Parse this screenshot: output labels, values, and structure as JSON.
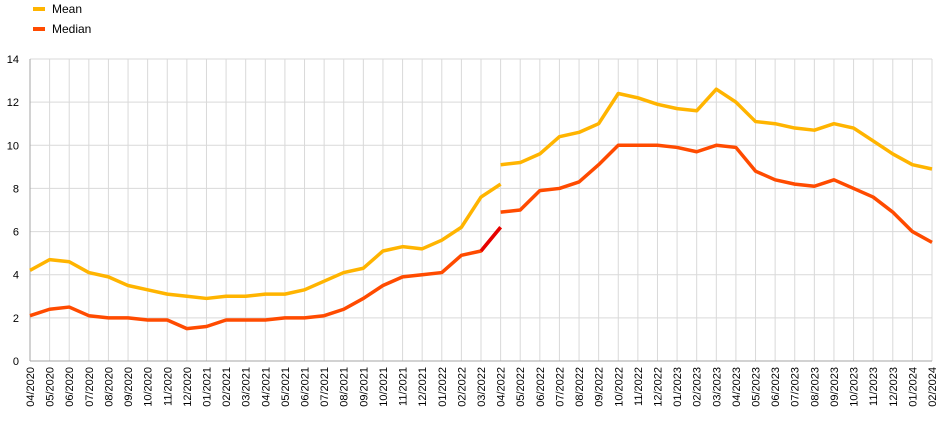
{
  "chart_data": {
    "type": "line",
    "title": "",
    "xlabel": "",
    "ylabel": "",
    "ylim": [
      0,
      14
    ],
    "yticks": [
      0,
      2,
      4,
      6,
      8,
      10,
      12,
      14
    ],
    "grid": true,
    "legend_position": "top-left",
    "categories": [
      "04/2020",
      "05/2020",
      "06/2020",
      "07/2020",
      "08/2020",
      "09/2020",
      "10/2020",
      "11/2020",
      "12/2020",
      "01/2021",
      "02/2021",
      "03/2021",
      "04/2021",
      "05/2021",
      "06/2021",
      "07/2021",
      "08/2021",
      "09/2021",
      "10/2021",
      "11/2021",
      "12/2021",
      "01/2022",
      "02/2022",
      "03/2022",
      "04/2022",
      "05/2022",
      "06/2022",
      "07/2022",
      "08/2022",
      "09/2022",
      "10/2022",
      "11/2022",
      "12/2022",
      "01/2023",
      "02/2023",
      "03/2023",
      "04/2023",
      "05/2023",
      "06/2023",
      "07/2023",
      "08/2023",
      "09/2023",
      "10/2023",
      "11/2023",
      "12/2023",
      "01/2024",
      "02/2024"
    ],
    "series": [
      {
        "name": "Mean",
        "color": "#FFB400",
        "segments": [
          {
            "start": 0,
            "values": [
              4.2,
              4.7,
              4.6,
              4.1,
              3.9,
              3.5,
              3.3,
              3.1,
              3.0,
              2.9,
              3.0,
              3.0,
              3.1,
              3.1,
              3.3,
              3.7,
              4.1,
              4.3,
              5.1,
              5.3,
              5.2,
              5.6,
              6.2,
              7.6,
              8.2
            ]
          },
          {
            "start": 24,
            "values": [
              9.1,
              9.2,
              9.6,
              10.4,
              10.6,
              11.0,
              12.4,
              12.2,
              11.9,
              11.7,
              11.6,
              12.6,
              12.0,
              11.1,
              11.0,
              10.8,
              10.7,
              11.0,
              10.8,
              10.2,
              9.6,
              9.1,
              8.9
            ]
          }
        ]
      },
      {
        "name": "Median",
        "color": "#FF4B00",
        "highlight_color": "#E60000",
        "segments": [
          {
            "start": 0,
            "values": [
              2.1,
              2.4,
              2.5,
              2.1,
              2.0,
              2.0,
              1.9,
              1.9,
              1.5,
              1.6,
              1.9,
              1.9,
              1.9,
              2.0,
              2.0,
              2.1,
              2.4,
              2.9,
              3.5,
              3.9,
              4.0,
              4.1,
              4.9,
              5.1,
              6.2
            ]
          },
          {
            "start": 24,
            "values": [
              6.9,
              7.0,
              7.9,
              8.0,
              8.3,
              9.1,
              10.0,
              10.0,
              10.0,
              9.9,
              9.7,
              10.0,
              9.9,
              8.8,
              8.4,
              8.2,
              8.1,
              8.4,
              8.0,
              7.6,
              6.9,
              6.0,
              5.5
            ]
          }
        ]
      }
    ]
  }
}
